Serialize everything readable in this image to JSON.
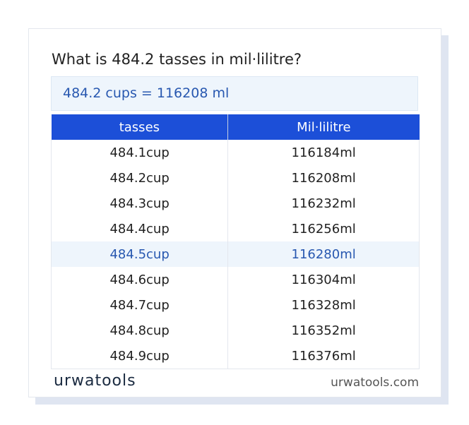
{
  "title": "What is 484.2 tasses in mil·lilitre?",
  "result": "484.2 cups = 116208 ml",
  "table": {
    "headers": [
      "tasses",
      "Mil·lilitre"
    ],
    "rows": [
      [
        "484.1cup",
        "116184ml"
      ],
      [
        "484.2cup",
        "116208ml"
      ],
      [
        "484.3cup",
        "116232ml"
      ],
      [
        "484.4cup",
        "116256ml"
      ],
      [
        "484.5cup",
        "116280ml"
      ],
      [
        "484.6cup",
        "116304ml"
      ],
      [
        "484.7cup",
        "116328ml"
      ],
      [
        "484.8cup",
        "116352ml"
      ],
      [
        "484.9cup",
        "116376ml"
      ]
    ]
  },
  "footer": {
    "logo": "urwatools",
    "site": "urwatools.com"
  }
}
